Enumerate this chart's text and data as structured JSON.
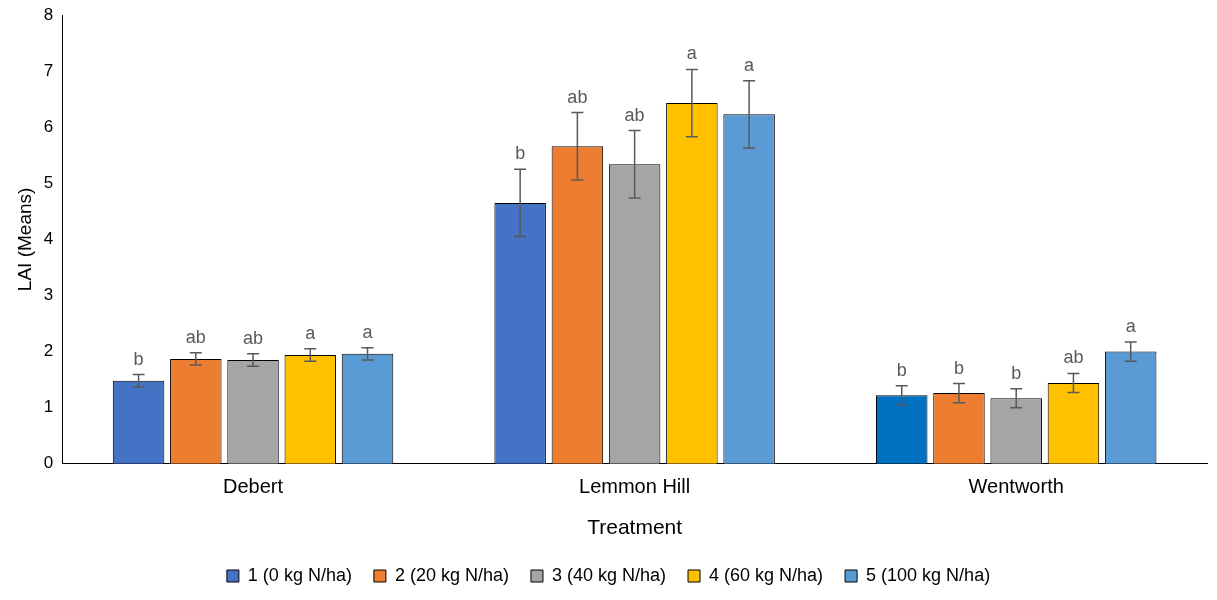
{
  "chart_data": {
    "type": "bar",
    "xlabel": "Treatment",
    "ylabel": "LAI (Means)",
    "categories": [
      "Debert",
      "Lemmon Hill",
      "Wentworth"
    ],
    "series": [
      {
        "name": "1 (0 kg N/ha)",
        "color": "#4472c4",
        "colors": [
          "#4472c4",
          "#4472c4",
          "#0070c0"
        ],
        "values": [
          1.48,
          4.65,
          1.22
        ],
        "errors": [
          0.11,
          0.6,
          0.17
        ],
        "value_labels": [
          "b",
          "b",
          "b"
        ]
      },
      {
        "name": "2 (20 kg N/ha)",
        "color": "#ed7d31",
        "values": [
          1.87,
          5.66,
          1.26
        ],
        "errors": [
          0.11,
          0.6,
          0.17
        ],
        "value_labels": [
          "ab",
          "ab",
          "b"
        ]
      },
      {
        "name": "3 (40 kg N/ha)",
        "color": "#a5a5a5",
        "values": [
          1.85,
          5.34,
          1.17
        ],
        "errors": [
          0.11,
          0.6,
          0.17
        ],
        "value_labels": [
          "ab",
          "ab",
          "b"
        ]
      },
      {
        "name": "4 (60 kg N/ha)",
        "color": "#ffc000",
        "values": [
          1.94,
          6.43,
          1.44
        ],
        "errors": [
          0.11,
          0.6,
          0.17
        ],
        "value_labels": [
          "a",
          "a",
          "ab"
        ]
      },
      {
        "name": "5 (100 kg N/ha)",
        "color": "#5b9bd5",
        "values": [
          1.96,
          6.23,
          2.0
        ],
        "errors": [
          0.11,
          0.6,
          0.17
        ],
        "value_labels": [
          "a",
          "a",
          "a"
        ]
      }
    ],
    "ylim": [
      0,
      8
    ],
    "yticks": [
      0,
      1,
      2,
      3,
      4,
      5,
      6,
      7,
      8
    ],
    "legend": "bottom",
    "grid": false
  }
}
